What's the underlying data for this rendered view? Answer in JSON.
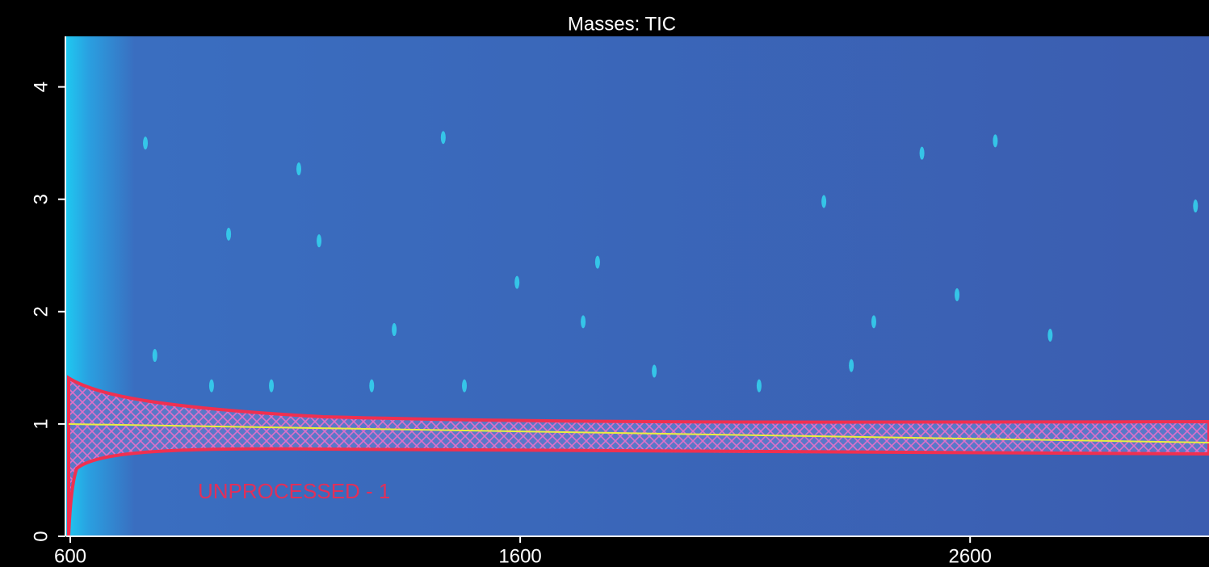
{
  "chart_data": {
    "type": "contour",
    "title": "Masses: TIC",
    "annotation": "UNPROCESSED - 1",
    "xlim": [
      600,
      3131
    ],
    "ylim": [
      0,
      4.45
    ],
    "xticks": [
      600,
      1600,
      2600
    ],
    "yticks": [
      0,
      1,
      2,
      3,
      4
    ],
    "peaks": {
      "color": "#35d6f0",
      "x": [
        767,
        1772,
        1740,
        2386,
        2336,
        1047,
        788,
        1429,
        2493,
        1153,
        1320,
        2656,
        3101,
        2571,
        2275,
        1593,
        1898,
        2778,
        914,
        1270,
        1476,
        2131,
        952,
        1108
      ],
      "y": [
        3.5,
        2.44,
        1.91,
        1.91,
        1.52,
        1.34,
        1.61,
        3.55,
        3.41,
        2.63,
        1.84,
        3.52,
        2.94,
        2.15,
        2.98,
        2.26,
        1.47,
        1.79,
        1.34,
        1.34,
        1.34,
        1.34,
        2.69,
        3.27
      ]
    }
  }
}
